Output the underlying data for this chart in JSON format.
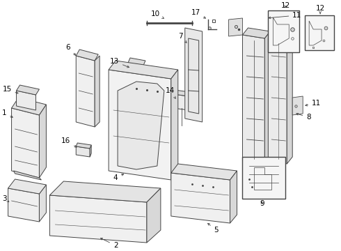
{
  "bg_color": "#ffffff",
  "lc": "#444444",
  "lw": 0.7,
  "fs": 7.5,
  "figsize": [
    4.9,
    3.6
  ],
  "dpi": 100
}
